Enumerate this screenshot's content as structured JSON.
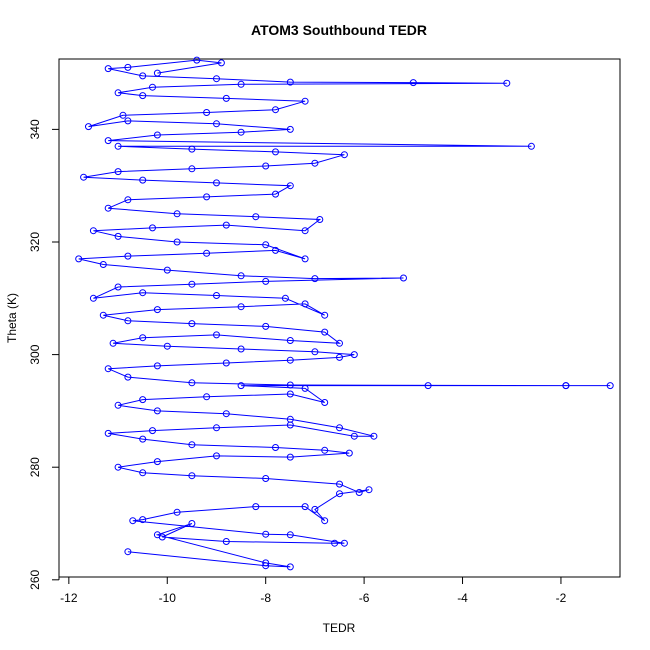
{
  "chart_data": {
    "type": "scatter",
    "title": "ATOM3 Southbound TEDR",
    "xlabel": "TEDR",
    "ylabel": "Theta (K)",
    "xlim": [
      -12.2,
      -0.8
    ],
    "ylim": [
      260.5,
      352.5
    ],
    "xticks": [
      -12,
      -10,
      -8,
      -6,
      -4,
      -2
    ],
    "yticks": [
      260,
      280,
      300,
      320,
      340
    ],
    "grid": false,
    "legend": "none",
    "connected": true,
    "point_style": "open-circle",
    "color": "#0000ff",
    "series": [
      {
        "values_summary": "dense connected point cloud",
        "points": [
          [
            -10.8,
            265.0
          ],
          [
            -8.0,
            262.5
          ],
          [
            -7.5,
            262.3
          ],
          [
            -8.0,
            263.0
          ],
          [
            -10.2,
            268.0
          ],
          [
            -9.5,
            270.0
          ],
          [
            -10.1,
            267.6
          ],
          [
            -8.8,
            266.8
          ],
          [
            -6.6,
            266.5
          ],
          [
            -6.4,
            266.5
          ],
          [
            -7.5,
            268.0
          ],
          [
            -8.0,
            268.1
          ],
          [
            -10.7,
            270.5
          ],
          [
            -10.5,
            270.7
          ],
          [
            -9.8,
            272.0
          ],
          [
            -8.2,
            273.0
          ],
          [
            -7.2,
            273.0
          ],
          [
            -6.8,
            270.5
          ],
          [
            -7.0,
            272.5
          ],
          [
            -6.5,
            275.3
          ],
          [
            -5.9,
            276.0
          ],
          [
            -6.1,
            275.5
          ],
          [
            -6.5,
            277.0
          ],
          [
            -8.0,
            278.0
          ],
          [
            -9.5,
            278.5
          ],
          [
            -10.5,
            279.0
          ],
          [
            -11.0,
            280.0
          ],
          [
            -10.2,
            281.0
          ],
          [
            -9.0,
            282.0
          ],
          [
            -7.5,
            281.8
          ],
          [
            -6.3,
            282.5
          ],
          [
            -6.8,
            283.0
          ],
          [
            -7.8,
            283.5
          ],
          [
            -9.5,
            284.0
          ],
          [
            -10.5,
            285.0
          ],
          [
            -11.2,
            286.0
          ],
          [
            -10.3,
            286.5
          ],
          [
            -9.0,
            287.0
          ],
          [
            -7.5,
            287.5
          ],
          [
            -6.2,
            285.5
          ],
          [
            -5.8,
            285.5
          ],
          [
            -6.5,
            287.0
          ],
          [
            -7.5,
            288.5
          ],
          [
            -8.8,
            289.5
          ],
          [
            -10.2,
            290.0
          ],
          [
            -11.0,
            291.0
          ],
          [
            -10.5,
            292.0
          ],
          [
            -9.2,
            292.5
          ],
          [
            -7.5,
            293.0
          ],
          [
            -6.8,
            291.5
          ],
          [
            -7.2,
            294.0
          ],
          [
            -8.5,
            294.5
          ],
          [
            -4.7,
            294.5
          ],
          [
            -1.9,
            294.5
          ],
          [
            -1.0,
            294.5
          ],
          [
            -1.9,
            294.5
          ],
          [
            -7.5,
            294.6
          ],
          [
            -9.5,
            295.0
          ],
          [
            -10.8,
            296.0
          ],
          [
            -11.2,
            297.5
          ],
          [
            -10.2,
            298.0
          ],
          [
            -8.8,
            298.5
          ],
          [
            -7.5,
            299.0
          ],
          [
            -6.5,
            299.5
          ],
          [
            -6.2,
            300.0
          ],
          [
            -7.0,
            300.5
          ],
          [
            -8.5,
            301.0
          ],
          [
            -10.0,
            301.5
          ],
          [
            -11.1,
            302.0
          ],
          [
            -10.5,
            303.0
          ],
          [
            -9.0,
            303.5
          ],
          [
            -7.5,
            302.5
          ],
          [
            -6.5,
            302.0
          ],
          [
            -6.8,
            304.0
          ],
          [
            -8.0,
            305.0
          ],
          [
            -9.5,
            305.5
          ],
          [
            -10.8,
            306.0
          ],
          [
            -11.3,
            307.0
          ],
          [
            -10.2,
            308.0
          ],
          [
            -8.5,
            308.5
          ],
          [
            -7.2,
            309.0
          ],
          [
            -6.8,
            307.0
          ],
          [
            -7.6,
            310.0
          ],
          [
            -9.0,
            310.5
          ],
          [
            -10.5,
            311.0
          ],
          [
            -11.5,
            310.0
          ],
          [
            -11.0,
            312.0
          ],
          [
            -9.5,
            312.5
          ],
          [
            -8.0,
            313.0
          ],
          [
            -5.2,
            313.6
          ],
          [
            -7.0,
            313.5
          ],
          [
            -8.5,
            314.0
          ],
          [
            -10.0,
            315.0
          ],
          [
            -11.3,
            316.0
          ],
          [
            -11.8,
            317.0
          ],
          [
            -10.8,
            317.5
          ],
          [
            -9.2,
            318.0
          ],
          [
            -7.8,
            318.5
          ],
          [
            -7.2,
            317.0
          ],
          [
            -8.0,
            319.5
          ],
          [
            -9.8,
            320.0
          ],
          [
            -11.0,
            321.0
          ],
          [
            -11.5,
            322.0
          ],
          [
            -10.3,
            322.5
          ],
          [
            -8.8,
            323.0
          ],
          [
            -7.2,
            322.0
          ],
          [
            -6.9,
            324.0
          ],
          [
            -8.2,
            324.5
          ],
          [
            -9.8,
            325.0
          ],
          [
            -11.2,
            326.0
          ],
          [
            -10.8,
            327.5
          ],
          [
            -9.2,
            328.0
          ],
          [
            -7.8,
            328.5
          ],
          [
            -7.5,
            330.0
          ],
          [
            -9.0,
            330.5
          ],
          [
            -10.5,
            331.0
          ],
          [
            -11.7,
            331.5
          ],
          [
            -11.0,
            332.5
          ],
          [
            -9.5,
            333.0
          ],
          [
            -8.0,
            333.5
          ],
          [
            -7.0,
            334.0
          ],
          [
            -6.4,
            335.5
          ],
          [
            -7.8,
            336.0
          ],
          [
            -9.5,
            336.5
          ],
          [
            -11.0,
            337.0
          ],
          [
            -2.6,
            337.0
          ],
          [
            -11.2,
            338.0
          ],
          [
            -10.2,
            339.0
          ],
          [
            -8.5,
            339.5
          ],
          [
            -7.5,
            340.0
          ],
          [
            -9.0,
            341.0
          ],
          [
            -10.8,
            341.5
          ],
          [
            -11.6,
            340.5
          ],
          [
            -10.9,
            342.5
          ],
          [
            -9.2,
            343.0
          ],
          [
            -7.8,
            343.5
          ],
          [
            -7.2,
            345.0
          ],
          [
            -8.8,
            345.5
          ],
          [
            -10.5,
            346.0
          ],
          [
            -11.0,
            346.5
          ],
          [
            -10.3,
            347.5
          ],
          [
            -8.5,
            348.0
          ],
          [
            -3.1,
            348.2
          ],
          [
            -5.0,
            348.3
          ],
          [
            -7.5,
            348.4
          ],
          [
            -9.0,
            349.0
          ],
          [
            -10.5,
            349.5
          ],
          [
            -11.2,
            350.8
          ],
          [
            -10.8,
            351.0
          ],
          [
            -9.4,
            352.3
          ],
          [
            -8.9,
            351.8
          ],
          [
            -10.2,
            350.0
          ]
        ]
      }
    ]
  }
}
